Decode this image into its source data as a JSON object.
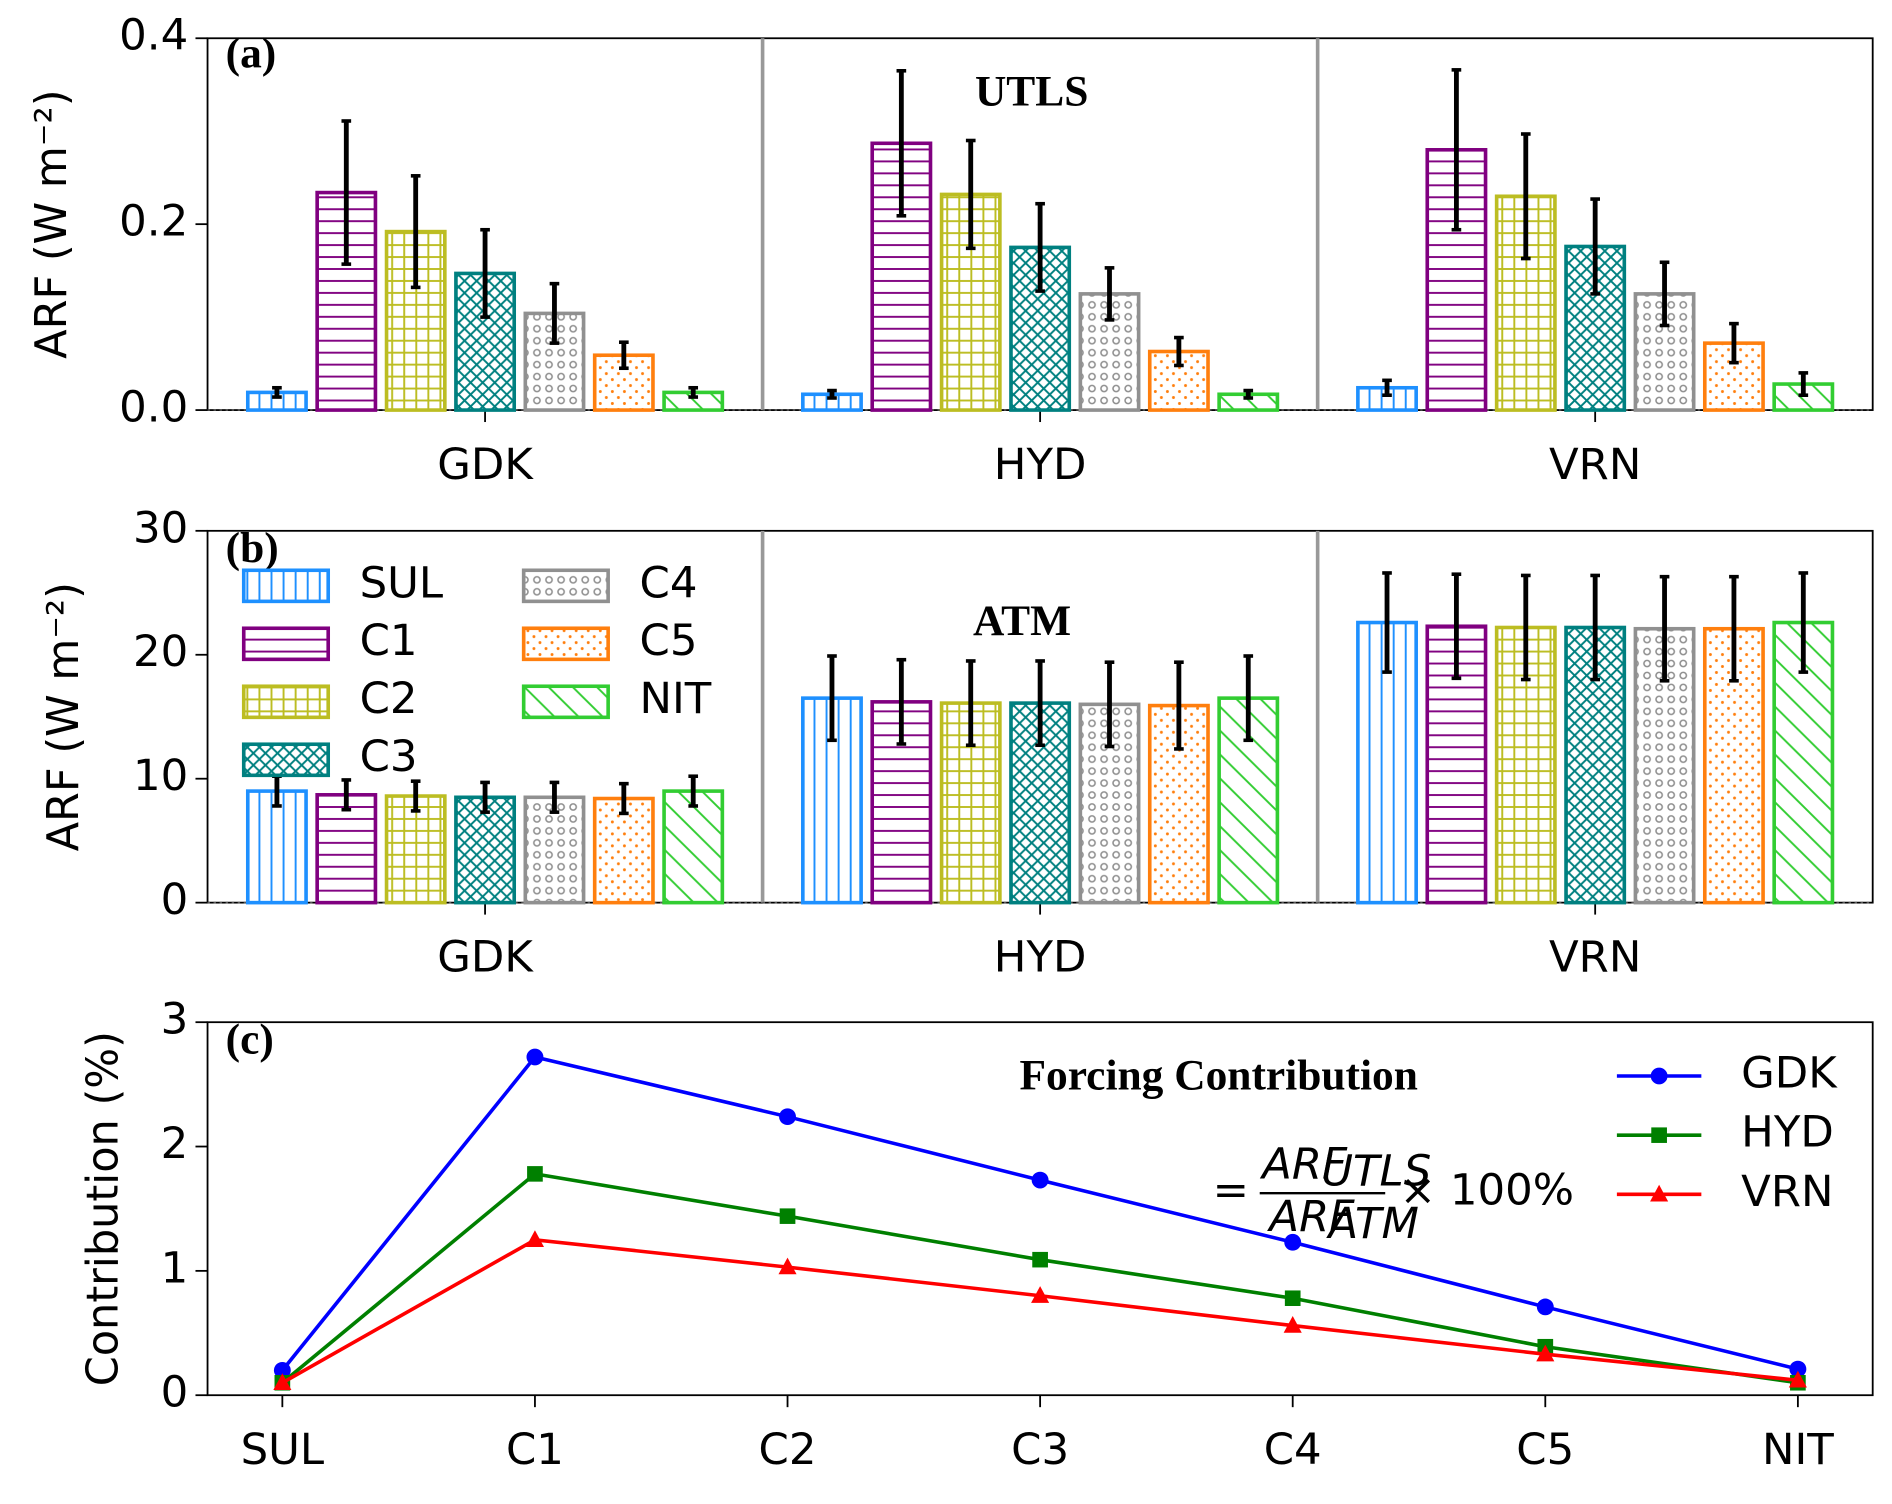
{
  "chart_data": [
    {
      "type": "bar",
      "panel_label": "(a)",
      "annotation": "UTLS",
      "ylabel": "ARF (W m⁻²)",
      "categories": [
        "GDK",
        "HYD",
        "VRN"
      ],
      "ylim": [
        0,
        0.4
      ],
      "yticks": [
        {
          "value": 0,
          "label": "0.0"
        },
        0.2,
        0.4
      ],
      "separators": true,
      "zero_line": true,
      "legend": false,
      "series": [
        {
          "name": "SUL",
          "color": "#1e90ff",
          "hatch": "|",
          "values": [
            0.019,
            0.017,
            0.024
          ],
          "errors": [
            0.005,
            0.004,
            0.008
          ]
        },
        {
          "name": "C1",
          "color": "#800080",
          "hatch": "-",
          "values": [
            0.234,
            0.287,
            0.28
          ],
          "errors": [
            0.077,
            0.078,
            0.086
          ]
        },
        {
          "name": "C2",
          "color": "#bcbd22",
          "hatch": "+",
          "values": [
            0.192,
            0.232,
            0.23
          ],
          "errors": [
            0.06,
            0.058,
            0.067
          ]
        },
        {
          "name": "C3",
          "color": "#008080",
          "hatch": "x",
          "values": [
            0.147,
            0.175,
            0.176
          ],
          "errors": [
            0.047,
            0.047,
            0.051
          ]
        },
        {
          "name": "C4",
          "color": "#909090",
          "hatch": "o",
          "values": [
            0.104,
            0.125,
            0.125
          ],
          "errors": [
            0.032,
            0.028,
            0.034
          ]
        },
        {
          "name": "C5",
          "color": "#ff7f0e",
          "hatch": ".",
          "values": [
            0.059,
            0.063,
            0.072
          ],
          "errors": [
            0.014,
            0.015,
            0.021
          ]
        },
        {
          "name": "NIT",
          "color": "#32cd32",
          "hatch": "\\",
          "values": [
            0.019,
            0.017,
            0.028
          ],
          "errors": [
            0.005,
            0.004,
            0.012
          ]
        }
      ]
    },
    {
      "type": "bar",
      "panel_label": "(b)",
      "annotation": "ATM",
      "ylabel": "ARF (W m⁻²)",
      "categories": [
        "GDK",
        "HYD",
        "VRN"
      ],
      "ylim": [
        0,
        30
      ],
      "yticks": [
        0,
        10,
        20,
        30
      ],
      "separators": true,
      "zero_line": true,
      "legend": "upper left",
      "series": [
        {
          "name": "SUL",
          "color": "#1e90ff",
          "hatch": "|",
          "values": [
            9.0,
            16.5,
            22.6
          ],
          "errors": [
            1.2,
            3.4,
            4.0
          ]
        },
        {
          "name": "C1",
          "color": "#800080",
          "hatch": "-",
          "values": [
            8.7,
            16.2,
            22.3
          ],
          "errors": [
            1.2,
            3.4,
            4.2
          ]
        },
        {
          "name": "C2",
          "color": "#bcbd22",
          "hatch": "+",
          "values": [
            8.6,
            16.1,
            22.2
          ],
          "errors": [
            1.2,
            3.4,
            4.2
          ]
        },
        {
          "name": "C3",
          "color": "#008080",
          "hatch": "x",
          "values": [
            8.5,
            16.1,
            22.2
          ],
          "errors": [
            1.2,
            3.4,
            4.2
          ]
        },
        {
          "name": "C4",
          "color": "#909090",
          "hatch": "o",
          "values": [
            8.5,
            16.0,
            22.1
          ],
          "errors": [
            1.2,
            3.4,
            4.2
          ]
        },
        {
          "name": "C5",
          "color": "#ff7f0e",
          "hatch": ".",
          "values": [
            8.4,
            15.9,
            22.1
          ],
          "errors": [
            1.2,
            3.5,
            4.2
          ]
        },
        {
          "name": "NIT",
          "color": "#32cd32",
          "hatch": "\\",
          "values": [
            9.0,
            16.5,
            22.6
          ],
          "errors": [
            1.2,
            3.4,
            4.0
          ]
        }
      ]
    },
    {
      "type": "line",
      "panel_label": "(c)",
      "annotation": "Forcing Contribution",
      "ylabel": "Contribution (%)",
      "formula": {
        "prefix": "=",
        "numerator": "ARF",
        "numerator_sub": "UTLS",
        "denominator": "ARF",
        "denominator_sub": "ATM",
        "suffix": "× 100%"
      },
      "categories": [
        "SUL",
        "C1",
        "C2",
        "C3",
        "C4",
        "C5",
        "NIT"
      ],
      "ylim": [
        0,
        3
      ],
      "yticks": [
        0,
        1,
        2,
        3
      ],
      "legend": "upper right",
      "series": [
        {
          "name": "GDK",
          "color": "#0000ff",
          "marker": "circle",
          "values": [
            0.2,
            2.72,
            2.24,
            1.73,
            1.23,
            0.71,
            0.21
          ]
        },
        {
          "name": "HYD",
          "color": "#008000",
          "marker": "square",
          "values": [
            0.1,
            1.78,
            1.44,
            1.09,
            0.78,
            0.39,
            0.1
          ]
        },
        {
          "name": "VRN",
          "color": "#ff0000",
          "marker": "triangle",
          "values": [
            0.1,
            1.25,
            1.03,
            0.8,
            0.56,
            0.33,
            0.12
          ]
        }
      ]
    }
  ]
}
